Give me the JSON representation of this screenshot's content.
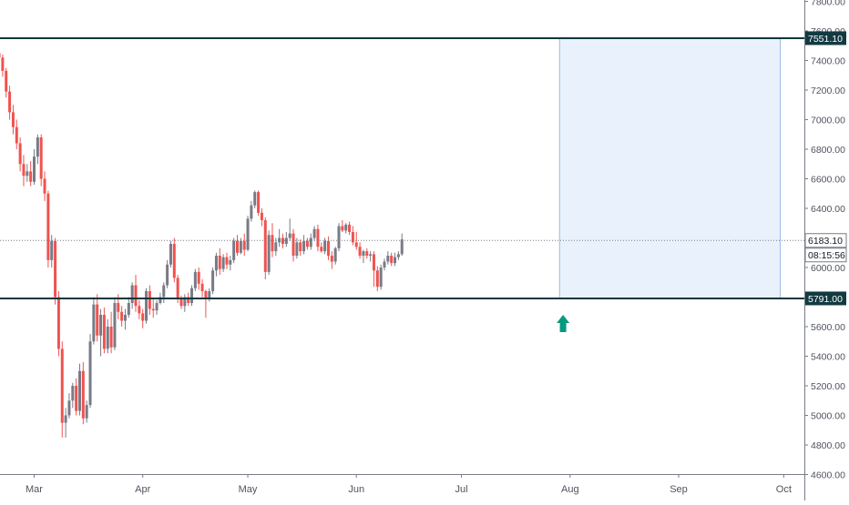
{
  "chart_data": {
    "type": "candlestick",
    "title": "",
    "xlabel": "",
    "ylabel": "",
    "ylim": [
      4600,
      7800
    ],
    "grid": false,
    "y_ticks": [
      "4600.00",
      "4800.00",
      "5000.00",
      "5200.00",
      "5400.00",
      "5600.00",
      "6000.00",
      "6200.00",
      "6400.00",
      "6600.00",
      "6800.00",
      "7000.00",
      "7200.00",
      "7400.00",
      "7600.00",
      "7800.00"
    ],
    "y_tick_values": [
      4600,
      4800,
      5000,
      5200,
      5400,
      5600,
      6000,
      6200,
      6400,
      6600,
      6800,
      7000,
      7200,
      7400,
      7600,
      7800
    ],
    "x_ticks": [
      "Mar",
      "Apr",
      "May",
      "Jun",
      "Jul",
      "Aug",
      "Sep",
      "Oct"
    ],
    "x_tick_days": [
      0,
      31,
      61,
      92,
      122,
      153,
      184,
      214
    ],
    "price_labels": {
      "upper_level": "7551.10",
      "last_price": "6183.10",
      "countdown": "08:15:56",
      "lower_level": "5791.00"
    },
    "levels": {
      "upper": 7551.1,
      "lower": 5791.0,
      "last": 6183.1
    },
    "zone": {
      "start_day": 150,
      "end_day": 213,
      "top": 7551.1,
      "bottom": 5791.0
    },
    "arrow": {
      "day": 151,
      "direction": "up"
    },
    "colors": {
      "up": "#787b86",
      "down": "#ef5350",
      "level_line": "#10373e",
      "label_bg": "#123a41",
      "zone_fill": "#e9f1fc",
      "zone_border": "#9bbce6",
      "arrow": "#089981",
      "axis_text": "#50535e"
    },
    "candles": [
      [
        -10,
        7450,
        7480,
        7300,
        7420
      ],
      [
        -9,
        7420,
        7440,
        7290,
        7330
      ],
      [
        -8,
        7330,
        7350,
        7150,
        7190
      ],
      [
        -7,
        7190,
        7230,
        7000,
        7050
      ],
      [
        -6,
        7050,
        7100,
        6900,
        6950
      ],
      [
        -5,
        6950,
        7000,
        6800,
        6840
      ],
      [
        -4,
        6840,
        6880,
        6650,
        6700
      ],
      [
        -3,
        6700,
        6760,
        6550,
        6620
      ],
      [
        -2,
        6620,
        6700,
        6580,
        6650
      ],
      [
        -1,
        6650,
        6720,
        6550,
        6580
      ],
      [
        0,
        6580,
        6800,
        6560,
        6750
      ],
      [
        1,
        6750,
        6900,
        6700,
        6880
      ],
      [
        2,
        6880,
        6900,
        6550,
        6600
      ],
      [
        3,
        6600,
        6650,
        6450,
        6500
      ],
      [
        4,
        6500,
        6520,
        6000,
        6050
      ],
      [
        5,
        6050,
        6220,
        6000,
        6180
      ],
      [
        6,
        6180,
        6200,
        5750,
        5800
      ],
      [
        7,
        5800,
        5840,
        5400,
        5450
      ],
      [
        8,
        5450,
        5500,
        4850,
        4950
      ],
      [
        9,
        4950,
        5050,
        4850,
        5000
      ],
      [
        10,
        5000,
        5150,
        4980,
        5100
      ],
      [
        11,
        5100,
        5220,
        5050,
        5200
      ],
      [
        12,
        5200,
        5250,
        5000,
        5030
      ],
      [
        13,
        5030,
        5350,
        5000,
        5300
      ],
      [
        14,
        5300,
        5360,
        4940,
        4980
      ],
      [
        15,
        4980,
        5100,
        4950,
        5070
      ],
      [
        16,
        5070,
        5550,
        5050,
        5500
      ],
      [
        17,
        5500,
        5800,
        5480,
        5750
      ],
      [
        18,
        5750,
        5820,
        5500,
        5540
      ],
      [
        19,
        5540,
        5720,
        5400,
        5680
      ],
      [
        20,
        5680,
        5730,
        5420,
        5450
      ],
      [
        21,
        5450,
        5650,
        5420,
        5600
      ],
      [
        22,
        5600,
        5700,
        5420,
        5460
      ],
      [
        23,
        5460,
        5800,
        5440,
        5760
      ],
      [
        24,
        5760,
        5820,
        5650,
        5700
      ],
      [
        25,
        5700,
        5740,
        5600,
        5640
      ],
      [
        26,
        5640,
        5720,
        5580,
        5680
      ],
      [
        27,
        5680,
        5800,
        5660,
        5760
      ],
      [
        28,
        5760,
        5900,
        5720,
        5880
      ],
      [
        29,
        5880,
        5950,
        5700,
        5740
      ],
      [
        30,
        5740,
        5780,
        5650,
        5690
      ],
      [
        31,
        5690,
        5720,
        5590,
        5640
      ],
      [
        32,
        5640,
        5860,
        5620,
        5840
      ],
      [
        33,
        5840,
        5880,
        5680,
        5720
      ],
      [
        34,
        5720,
        5790,
        5660,
        5710
      ],
      [
        35,
        5710,
        5780,
        5680,
        5760
      ],
      [
        36,
        5760,
        5830,
        5750,
        5800
      ],
      [
        37,
        5800,
        5900,
        5760,
        5880
      ],
      [
        38,
        5880,
        6050,
        5860,
        6020
      ],
      [
        39,
        6020,
        6180,
        6000,
        6160
      ],
      [
        40,
        6160,
        6200,
        5900,
        5930
      ],
      [
        41,
        5930,
        5950,
        5760,
        5790
      ],
      [
        42,
        5790,
        5810,
        5720,
        5740
      ],
      [
        43,
        5740,
        5820,
        5700,
        5800
      ],
      [
        44,
        5800,
        5830,
        5740,
        5760
      ],
      [
        45,
        5760,
        5880,
        5740,
        5860
      ],
      [
        46,
        5860,
        5990,
        5840,
        5970
      ],
      [
        47,
        5970,
        6000,
        5850,
        5890
      ],
      [
        48,
        5890,
        5920,
        5800,
        5840
      ],
      [
        49,
        5840,
        5850,
        5660,
        5790
      ],
      [
        50,
        5790,
        5860,
        5770,
        5840
      ],
      [
        51,
        5840,
        6000,
        5820,
        5980
      ],
      [
        52,
        5980,
        6100,
        5940,
        6080
      ],
      [
        53,
        6080,
        6130,
        5950,
        5990
      ],
      [
        54,
        5990,
        6090,
        5970,
        6070
      ],
      [
        55,
        6070,
        6100,
        5990,
        6020
      ],
      [
        56,
        6020,
        6080,
        5980,
        6050
      ],
      [
        57,
        6050,
        6200,
        6030,
        6180
      ],
      [
        58,
        6180,
        6220,
        6080,
        6100
      ],
      [
        59,
        6100,
        6200,
        6090,
        6180
      ],
      [
        60,
        6180,
        6230,
        6080,
        6120
      ],
      [
        61,
        6120,
        6350,
        6110,
        6330
      ],
      [
        62,
        6330,
        6450,
        6310,
        6420
      ],
      [
        63,
        6420,
        6520,
        6400,
        6510
      ],
      [
        64,
        6510,
        6520,
        6350,
        6370
      ],
      [
        65,
        6370,
        6400,
        6280,
        6320
      ],
      [
        66,
        6320,
        6340,
        5920,
        5970
      ],
      [
        67,
        5970,
        6250,
        5950,
        6220
      ],
      [
        68,
        6220,
        6300,
        6070,
        6110
      ],
      [
        69,
        6110,
        6200,
        6080,
        6170
      ],
      [
        70,
        6170,
        6260,
        6140,
        6200
      ],
      [
        71,
        6200,
        6230,
        6130,
        6160
      ],
      [
        72,
        6160,
        6240,
        6140,
        6200
      ],
      [
        73,
        6200,
        6330,
        6180,
        6230
      ],
      [
        74,
        6230,
        6260,
        6040,
        6080
      ],
      [
        75,
        6080,
        6200,
        6060,
        6170
      ],
      [
        76,
        6170,
        6190,
        6080,
        6110
      ],
      [
        77,
        6110,
        6220,
        6090,
        6180
      ],
      [
        78,
        6180,
        6200,
        6120,
        6140
      ],
      [
        79,
        6140,
        6230,
        6120,
        6200
      ],
      [
        80,
        6200,
        6280,
        6180,
        6260
      ],
      [
        81,
        6260,
        6290,
        6110,
        6140
      ],
      [
        82,
        6140,
        6170,
        6100,
        6110
      ],
      [
        83,
        6110,
        6200,
        6090,
        6180
      ],
      [
        84,
        6180,
        6210,
        6050,
        6080
      ],
      [
        85,
        6080,
        6110,
        5990,
        6040
      ],
      [
        86,
        6040,
        6140,
        6020,
        6130
      ],
      [
        87,
        6130,
        6300,
        6110,
        6280
      ],
      [
        88,
        6280,
        6320,
        6240,
        6250
      ],
      [
        89,
        6250,
        6300,
        6230,
        6290
      ],
      [
        90,
        6290,
        6310,
        6220,
        6240
      ],
      [
        91,
        6240,
        6280,
        6150,
        6170
      ],
      [
        92,
        6170,
        6240,
        6120,
        6140
      ],
      [
        93,
        6140,
        6170,
        6060,
        6080
      ],
      [
        94,
        6080,
        6120,
        6030,
        6110
      ],
      [
        95,
        6110,
        6130,
        6060,
        6080
      ],
      [
        96,
        6080,
        6110,
        6040,
        6090
      ],
      [
        97,
        6090,
        6110,
        5870,
        5980
      ],
      [
        98,
        5980,
        6010,
        5840,
        5870
      ],
      [
        99,
        5870,
        6020,
        5850,
        6000
      ],
      [
        100,
        6000,
        6060,
        5980,
        6040
      ],
      [
        101,
        6040,
        6110,
        6020,
        6080
      ],
      [
        102,
        6080,
        6100,
        6010,
        6030
      ],
      [
        103,
        6030,
        6100,
        6010,
        6070
      ],
      [
        104,
        6070,
        6110,
        6050,
        6090
      ],
      [
        105,
        6090,
        6230,
        6080,
        6190
      ]
    ]
  }
}
